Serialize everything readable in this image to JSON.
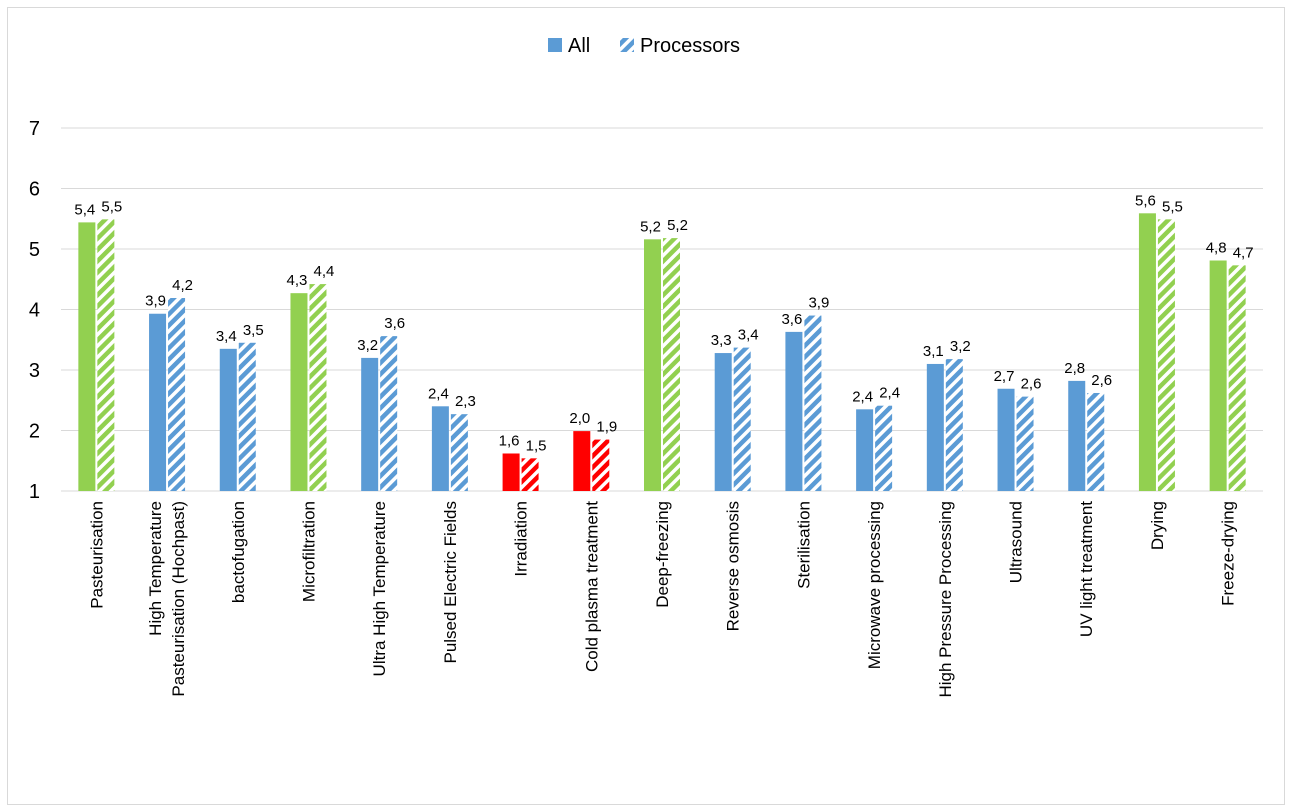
{
  "colors": {
    "green": "#92d050",
    "blue": "#5b9bd5",
    "red": "#ff0000",
    "gridline": "#d9d9d9",
    "border": "#d9d9d9"
  },
  "chart_data": {
    "type": "bar",
    "title": "",
    "xlabel": "",
    "ylabel": "",
    "ylim": [
      1,
      7
    ],
    "yticks": [
      "1",
      "2",
      "3",
      "4",
      "5",
      "6",
      "7"
    ],
    "grid": true,
    "legend_position": "top-center",
    "categories": [
      "Pasteurisation",
      "High Temperature Pasteurisation (Hochpast)",
      "bactofugation",
      "Microfiltration",
      "Ultra High Temperature",
      "Pulsed Electric Fields",
      "Irradiation",
      "Cold plasma treatment",
      "Deep-freezing",
      "Reverse osmosis",
      "Sterilisation",
      "Microwave processing",
      "High Pressure Processing",
      "Ultrasound",
      "UV light treatment",
      "Drying",
      "Freeze-drying"
    ],
    "category_colors": [
      "green",
      "blue",
      "blue",
      "green",
      "blue",
      "blue",
      "red",
      "red",
      "green",
      "blue",
      "blue",
      "blue",
      "blue",
      "blue",
      "blue",
      "green",
      "green"
    ],
    "series": [
      {
        "name": "All",
        "pattern": "solid",
        "values": [
          5.44,
          3.93,
          3.35,
          4.27,
          3.2,
          2.4,
          1.62,
          1.99,
          5.16,
          3.28,
          3.63,
          2.35,
          3.1,
          2.69,
          2.82,
          5.59,
          4.81
        ],
        "labels": [
          "5,4",
          "3,9",
          "3,4",
          "4,3",
          "3,2",
          "2,4",
          "1,6",
          "2,0",
          "5,2",
          "3,3",
          "3,6",
          "2,4",
          "3,1",
          "2,7",
          "2,8",
          "5,6",
          "4,8"
        ]
      },
      {
        "name": "Processors",
        "pattern": "hatched",
        "values": [
          5.49,
          4.19,
          3.45,
          4.42,
          3.56,
          2.27,
          1.54,
          1.85,
          5.18,
          3.37,
          3.9,
          2.41,
          3.18,
          2.56,
          2.62,
          5.49,
          4.73
        ],
        "labels": [
          "5,5",
          "4,2",
          "3,5",
          "4,4",
          "3,6",
          "2,3",
          "1,5",
          "1,9",
          "5,2",
          "3,4",
          "3,9",
          "2,4",
          "3,2",
          "2,6",
          "2,6",
          "5,5",
          "4,7"
        ]
      }
    ]
  }
}
